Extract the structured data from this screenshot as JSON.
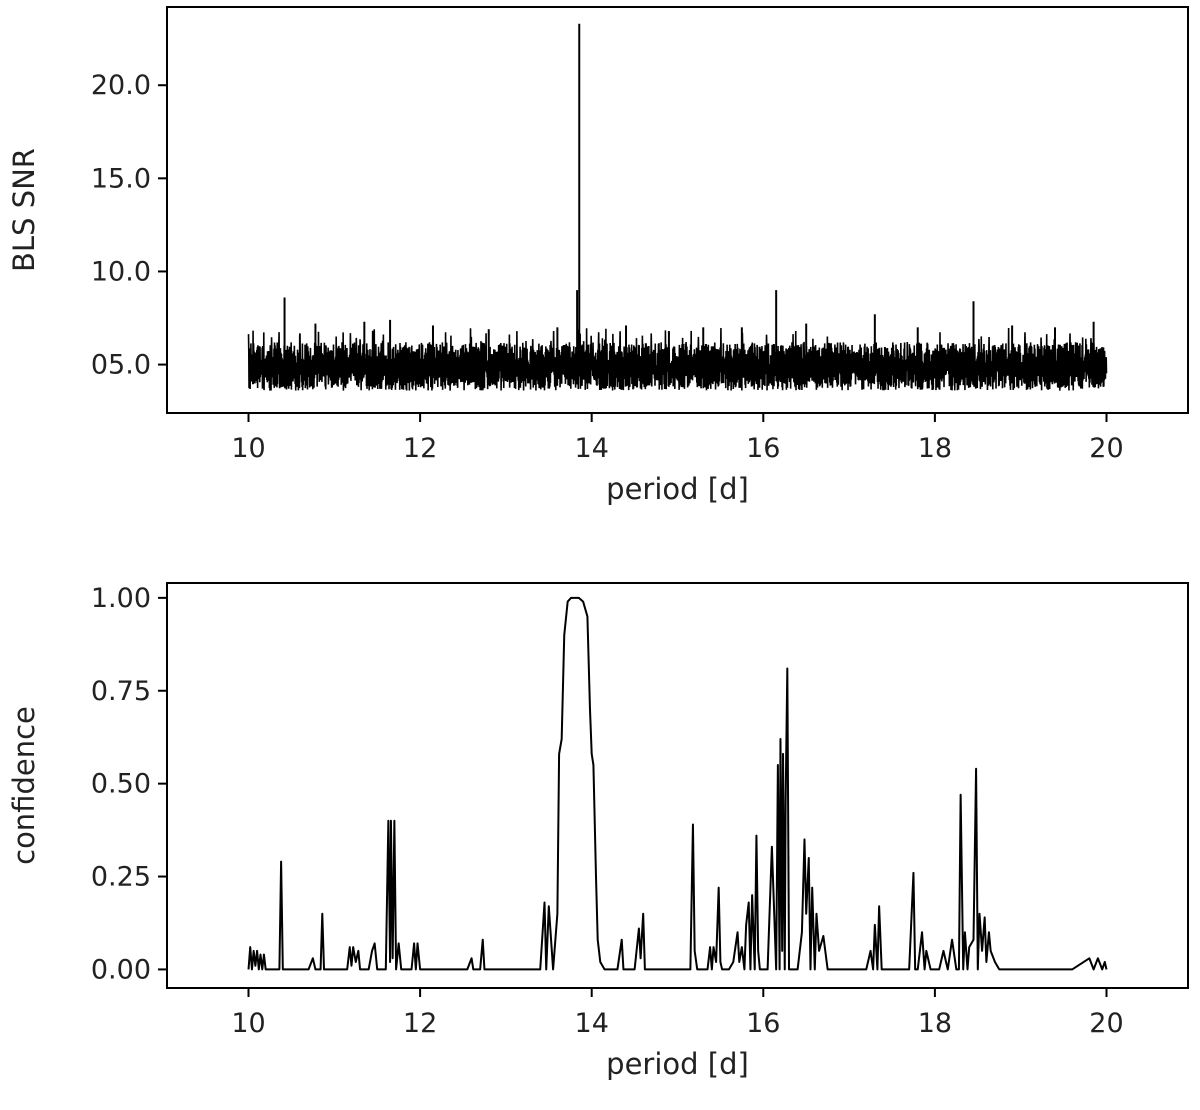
{
  "chart_data": [
    {
      "type": "line",
      "xlabel": "period [d]",
      "ylabel": "BLS SNR",
      "xlim": [
        9.05,
        20.95
      ],
      "ylim": [
        2.4,
        24.2
      ],
      "xticks": [
        10,
        12,
        14,
        16,
        18,
        20
      ],
      "xtick_labels": [
        "10",
        "12",
        "14",
        "16",
        "18",
        "20"
      ],
      "yticks": [
        5,
        10,
        15,
        20
      ],
      "ytick_labels": [
        "05.0",
        "10.0",
        "15.0",
        "20.0"
      ],
      "grid": false,
      "line_color": "#000000",
      "series": [
        {
          "noise": {
            "x_start": 10.0,
            "x_end": 20.0,
            "band_low": 3.6,
            "band_high": 6.2,
            "center": 4.9
          },
          "peaks": [
            {
              "x": 10.42,
              "y": 8.6
            },
            {
              "x": 10.78,
              "y": 7.2
            },
            {
              "x": 11.35,
              "y": 7.3
            },
            {
              "x": 11.65,
              "y": 7.4
            },
            {
              "x": 12.15,
              "y": 7.1
            },
            {
              "x": 12.8,
              "y": 6.9
            },
            {
              "x": 13.6,
              "y": 7.0
            },
            {
              "x": 13.83,
              "y": 9.0
            },
            {
              "x": 13.855,
              "y": 23.3
            },
            {
              "x": 14.4,
              "y": 7.1
            },
            {
              "x": 14.9,
              "y": 6.8
            },
            {
              "x": 15.3,
              "y": 7.0
            },
            {
              "x": 15.75,
              "y": 7.0
            },
            {
              "x": 16.15,
              "y": 9.0
            },
            {
              "x": 16.5,
              "y": 7.2
            },
            {
              "x": 17.3,
              "y": 7.7
            },
            {
              "x": 17.8,
              "y": 7.0
            },
            {
              "x": 18.45,
              "y": 8.4
            },
            {
              "x": 18.9,
              "y": 7.1
            },
            {
              "x": 19.4,
              "y": 7.0
            },
            {
              "x": 19.85,
              "y": 7.3
            }
          ]
        }
      ]
    },
    {
      "type": "line",
      "xlabel": "period [d]",
      "ylabel": "confidence",
      "xlim": [
        9.05,
        20.95
      ],
      "ylim": [
        -0.05,
        1.04
      ],
      "xticks": [
        10,
        12,
        14,
        16,
        18,
        20
      ],
      "xtick_labels": [
        "10",
        "12",
        "14",
        "16",
        "18",
        "20"
      ],
      "yticks": [
        0.0,
        0.25,
        0.5,
        0.75,
        1.0
      ],
      "ytick_labels": [
        "0.00",
        "0.25",
        "0.50",
        "0.75",
        "1.00"
      ],
      "grid": false,
      "line_color": "#000000",
      "series": [
        {
          "x": [
            10.0,
            10.02,
            10.04,
            10.06,
            10.08,
            10.1,
            10.12,
            10.14,
            10.16,
            10.18,
            10.2,
            10.3,
            10.36,
            10.38,
            10.4,
            10.5,
            10.6,
            10.7,
            10.75,
            10.78,
            10.8,
            10.84,
            10.86,
            10.88,
            11.0,
            11.1,
            11.15,
            11.18,
            11.2,
            11.22,
            11.25,
            11.28,
            11.3,
            11.35,
            11.4,
            11.44,
            11.47,
            11.5,
            11.55,
            11.6,
            11.63,
            11.65,
            11.66,
            11.68,
            11.7,
            11.72,
            11.75,
            11.78,
            11.8,
            11.9,
            11.93,
            11.95,
            11.97,
            12.0,
            12.05,
            12.2,
            12.4,
            12.55,
            12.6,
            12.62,
            12.7,
            12.73,
            12.75,
            12.8,
            13.0,
            13.2,
            13.4,
            13.45,
            13.47,
            13.5,
            13.55,
            13.6,
            13.62,
            13.65,
            13.68,
            13.72,
            13.76,
            13.8,
            13.85,
            13.9,
            13.95,
            13.98,
            14.0,
            14.02,
            14.05,
            14.07,
            14.1,
            14.15,
            14.2,
            14.3,
            14.35,
            14.37,
            14.4,
            14.5,
            14.55,
            14.57,
            14.6,
            14.62,
            14.65,
            14.7,
            14.8,
            15.0,
            15.1,
            15.15,
            15.18,
            15.2,
            15.23,
            15.25,
            15.3,
            15.35,
            15.38,
            15.4,
            15.42,
            15.45,
            15.48,
            15.5,
            15.52,
            15.55,
            15.6,
            15.65,
            15.7,
            15.72,
            15.75,
            15.78,
            15.8,
            15.83,
            15.85,
            15.87,
            15.9,
            15.92,
            15.94,
            15.96,
            16.0,
            16.05,
            16.1,
            16.15,
            16.17,
            16.19,
            16.2,
            16.22,
            16.23,
            16.25,
            16.26,
            16.28,
            16.3,
            16.32,
            16.35,
            16.4,
            16.45,
            16.48,
            16.5,
            16.53,
            16.55,
            16.57,
            16.6,
            16.62,
            16.65,
            16.7,
            16.75,
            16.8,
            17.0,
            17.2,
            17.25,
            17.28,
            17.3,
            17.33,
            17.35,
            17.38,
            17.4,
            17.45,
            17.5,
            17.7,
            17.75,
            17.77,
            17.8,
            17.85,
            17.88,
            17.9,
            17.95,
            18.0,
            18.05,
            18.1,
            18.15,
            18.2,
            18.25,
            18.28,
            18.3,
            18.33,
            18.35,
            18.38,
            18.4,
            18.45,
            18.48,
            18.5,
            18.52,
            18.55,
            18.58,
            18.6,
            18.63,
            18.65,
            18.7,
            18.75,
            18.8,
            18.9,
            19.0,
            19.2,
            19.4,
            19.6,
            19.8,
            19.85,
            19.9,
            19.95,
            19.98,
            20.0
          ],
          "y": [
            0.0,
            0.06,
            0.0,
            0.05,
            0.01,
            0.05,
            0.0,
            0.04,
            0.0,
            0.04,
            0.0,
            0.0,
            0.0,
            0.29,
            0.0,
            0.0,
            0.0,
            0.0,
            0.03,
            0.0,
            0.0,
            0.0,
            0.15,
            0.0,
            0.0,
            0.0,
            0.0,
            0.06,
            0.01,
            0.06,
            0.02,
            0.05,
            0.0,
            0.0,
            0.0,
            0.05,
            0.07,
            0.0,
            0.0,
            0.0,
            0.4,
            0.02,
            0.4,
            0.03,
            0.4,
            0.0,
            0.07,
            0.0,
            0.0,
            0.0,
            0.07,
            0.0,
            0.07,
            0.0,
            0.0,
            0.0,
            0.0,
            0.0,
            0.03,
            0.0,
            0.0,
            0.08,
            0.0,
            0.0,
            0.0,
            0.0,
            0.0,
            0.18,
            0.0,
            0.17,
            0.0,
            0.15,
            0.58,
            0.62,
            0.9,
            0.99,
            1.0,
            1.0,
            1.0,
            0.99,
            0.95,
            0.7,
            0.58,
            0.55,
            0.25,
            0.08,
            0.02,
            0.0,
            0.0,
            0.0,
            0.08,
            0.0,
            0.0,
            0.0,
            0.11,
            0.03,
            0.15,
            0.0,
            0.0,
            0.0,
            0.0,
            0.0,
            0.0,
            0.0,
            0.39,
            0.05,
            0.0,
            0.0,
            0.0,
            0.0,
            0.06,
            0.0,
            0.06,
            0.02,
            0.22,
            0.02,
            0.0,
            0.0,
            0.0,
            0.02,
            0.1,
            0.02,
            0.06,
            0.0,
            0.12,
            0.18,
            0.0,
            0.2,
            0.0,
            0.36,
            0.05,
            0.0,
            0.0,
            0.0,
            0.33,
            0.0,
            0.55,
            0.0,
            0.62,
            0.05,
            0.58,
            0.0,
            0.45,
            0.81,
            0.0,
            0.0,
            0.0,
            0.0,
            0.1,
            0.35,
            0.15,
            0.3,
            0.0,
            0.22,
            0.0,
            0.15,
            0.05,
            0.09,
            0.0,
            0.0,
            0.0,
            0.0,
            0.05,
            0.0,
            0.12,
            0.0,
            0.17,
            0.0,
            0.0,
            0.0,
            0.0,
            0.0,
            0.26,
            0.0,
            0.0,
            0.1,
            0.0,
            0.05,
            0.0,
            0.0,
            0.0,
            0.05,
            0.0,
            0.08,
            0.0,
            0.0,
            0.47,
            0.0,
            0.1,
            0.0,
            0.06,
            0.08,
            0.54,
            0.0,
            0.15,
            0.05,
            0.14,
            0.02,
            0.1,
            0.05,
            0.02,
            0.0,
            0.0,
            0.0,
            0.0,
            0.0,
            0.0,
            0.0,
            0.03,
            0.0,
            0.03,
            0.0,
            0.02,
            0.0
          ]
        }
      ]
    }
  ]
}
